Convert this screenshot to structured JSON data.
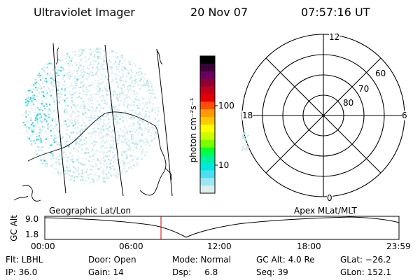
{
  "header": {
    "instrument": "Ultraviolet Imager",
    "date": "20 Nov 07",
    "time": "07:57:16 UT"
  },
  "colorbar": {
    "unit_label": "photon cm⁻²s⁻¹",
    "ticks": [
      {
        "label": "100",
        "value": 100
      },
      {
        "label": "10",
        "value": 10
      }
    ],
    "colors": [
      "#000000",
      "#3a003a",
      "#6a0060",
      "#900030",
      "#c0001c",
      "#e40000",
      "#ff5000",
      "#ff9c00",
      "#ffc800",
      "#ffff00",
      "#c8ff00",
      "#78ff00",
      "#00ff3c",
      "#00f0a0",
      "#00e6dc",
      "#50dcf0",
      "#a0e6f0",
      "#dceef0"
    ]
  },
  "polar_plot": {
    "mlt_labels": [
      {
        "label": "12",
        "pos": "top"
      },
      {
        "label": "18",
        "pos": "left"
      },
      {
        "label": "6",
        "pos": "right"
      },
      {
        "label": "0",
        "pos": "bottom"
      }
    ],
    "lat_labels": [
      "60",
      "70",
      "80"
    ]
  },
  "timeline": {
    "left_title": "Geographic Lat/Lon",
    "right_title": "Apex MLat/MLT",
    "y_axis_label": "GC Alt",
    "y_ticks": [
      "9.0",
      "1.8"
    ],
    "x_ticks": [
      "00:00",
      "06:00",
      "12:00",
      "18:00",
      "23:59"
    ],
    "marker_color": "#d00000"
  },
  "info": {
    "row1": [
      {
        "key": "flt",
        "text": "Flt: LBHL"
      },
      {
        "key": "door",
        "text": "Door: Open"
      },
      {
        "key": "mode",
        "text": "Mode: Normal"
      },
      {
        "key": "gcalt",
        "text": "GC Alt: 4.0 Re"
      },
      {
        "key": "glat",
        "text": "GLat: −26.2"
      }
    ],
    "row2": [
      {
        "key": "ip",
        "text": "IP: 36.0"
      },
      {
        "key": "gain",
        "text": "Gain: 14"
      },
      {
        "key": "dsp",
        "text": "Dsp:     6.8"
      },
      {
        "key": "seq",
        "text": "Seq: 39"
      },
      {
        "key": "glon",
        "text": "GLon: 152.1"
      }
    ]
  }
}
